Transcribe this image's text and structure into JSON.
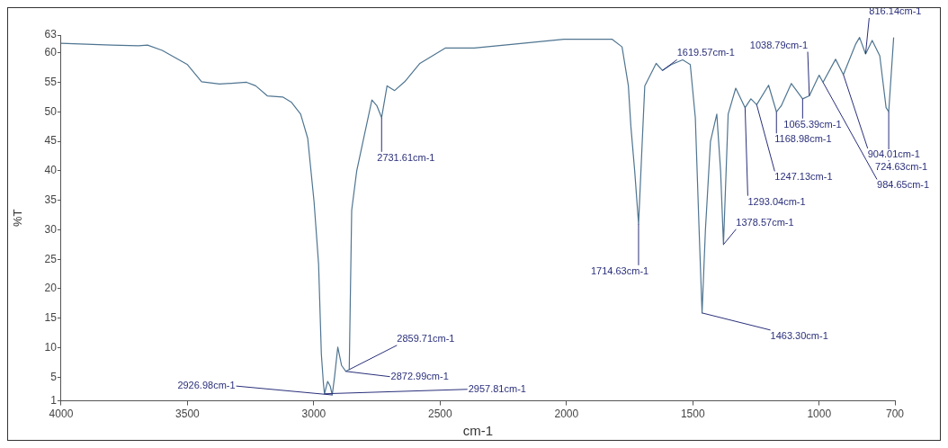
{
  "chart_data": {
    "type": "line",
    "xlabel": "cm-1",
    "ylabel": "%T",
    "xlim": [
      4000,
      700
    ],
    "xticks": [
      4000,
      3500,
      3000,
      2500,
      2000,
      1500,
      1000,
      700
    ],
    "ylim": [
      1,
      63
    ],
    "yticks": [
      1,
      5,
      10,
      15,
      20,
      25,
      30,
      35,
      40,
      45,
      50,
      55,
      60,
      63
    ],
    "grid": false,
    "legend": false,
    "marker": "none",
    "line_style": "solid",
    "series": [
      {
        "color": "#4f7591",
        "x": [
          4000,
          3800,
          3694,
          3658,
          3600,
          3500,
          3444,
          3373,
          3266,
          3230,
          3184,
          3123,
          3088,
          3052,
          3024,
          2999,
          2981,
          2970,
          2962,
          2957.81,
          2945,
          2935,
          2926.98,
          2918,
          2905,
          2890,
          2872.99,
          2859.71,
          2850,
          2830,
          2800,
          2770,
          2750,
          2731.61,
          2710,
          2680,
          2640,
          2580,
          2480,
          2365,
          2200,
          2010,
          1820,
          1780,
          1755,
          1745,
          1730,
          1714.63,
          1700,
          1690,
          1645,
          1620,
          1585,
          1540,
          1510,
          1490,
          1475,
          1463.3,
          1450,
          1430,
          1405,
          1390,
          1378.57,
          1360,
          1330,
          1293.04,
          1270,
          1247.13,
          1200,
          1168.98,
          1150,
          1110,
          1065.39,
          1038.79,
          1000,
          984.65,
          935,
          904.01,
          855,
          840,
          816.14,
          790,
          760,
          735,
          724.63,
          705
        ],
        "values": [
          61.6,
          61.3,
          61.2,
          61.3,
          60.4,
          58,
          55.1,
          54.7,
          55,
          54.4,
          52.7,
          52.5,
          51.6,
          49.6,
          45.5,
          34.8,
          24.2,
          8.9,
          4,
          2.2,
          4.3,
          3.5,
          2,
          5,
          10.1,
          7,
          6,
          6.3,
          33.3,
          40,
          46,
          52,
          51,
          49,
          54.4,
          53.6,
          55.1,
          58.2,
          60.8,
          60.8,
          61.5,
          62.3,
          62.3,
          61,
          54.4,
          47.5,
          40,
          31,
          45,
          54.4,
          58.2,
          57,
          58,
          58.8,
          58,
          49,
          30,
          15.9,
          30,
          45,
          49.6,
          40,
          27.5,
          49.6,
          54,
          50.7,
          52.2,
          51.2,
          54.5,
          50,
          51,
          54.8,
          52.2,
          52.7,
          56.2,
          55,
          58.9,
          56.3,
          61.5,
          62.6,
          59.8,
          62.1,
          59.5,
          50.7,
          50,
          62.6
        ]
      }
    ],
    "annotations": [
      {
        "text": "2926.98cm-1",
        "x": 2926.98,
        "y": 2
      },
      {
        "text": "2957.81cm-1",
        "x": 2957.81,
        "y": 2.2
      },
      {
        "text": "2859.71cm-1",
        "x": 2859.71,
        "y": 6.3
      },
      {
        "text": "2872.99cm-1",
        "x": 2872.99,
        "y": 6
      },
      {
        "text": "2731.61cm-1",
        "x": 2731.61,
        "y": 49
      },
      {
        "text": "1714.63cm-1",
        "x": 1714.63,
        "y": 31
      },
      {
        "text": "1619.57cm-1",
        "x": 1619.57,
        "y": 57
      },
      {
        "text": "1463.30cm-1",
        "x": 1463.3,
        "y": 15.9
      },
      {
        "text": "1378.57cm-1",
        "x": 1378.57,
        "y": 27.5
      },
      {
        "text": "1293.04cm-1",
        "x": 1293.04,
        "y": 50.7
      },
      {
        "text": "1247.13cm-1",
        "x": 1247.13,
        "y": 51.2
      },
      {
        "text": "1168.98cm-1",
        "x": 1168.98,
        "y": 50
      },
      {
        "text": "1065.39cm-1",
        "x": 1065.39,
        "y": 52.2
      },
      {
        "text": "1038.79cm-1",
        "x": 1038.79,
        "y": 52.7
      },
      {
        "text": "984.65cm-1",
        "x": 984.65,
        "y": 55
      },
      {
        "text": "904.01cm-1",
        "x": 904.01,
        "y": 56.3
      },
      {
        "text": "816.14cm-1",
        "x": 816.14,
        "y": 59.8
      },
      {
        "text": "724.63cm-1",
        "x": 724.63,
        "y": 50
      }
    ]
  }
}
